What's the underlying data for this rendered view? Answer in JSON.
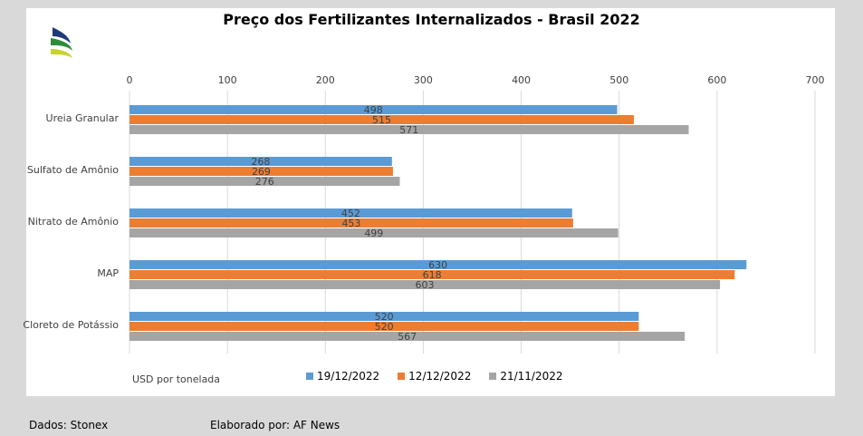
{
  "chart_data": {
    "type": "bar",
    "orientation": "horizontal",
    "title": "Preço dos Fertilizantes Internalizados  - Brasil 2022",
    "xlabel": "USD por tonelada",
    "ylabel": "",
    "xlim": [
      0,
      700
    ],
    "xticks": [
      0,
      100,
      200,
      300,
      400,
      500,
      600,
      700
    ],
    "grid": true,
    "legend_position": "bottom",
    "categories": [
      "Ureia Granular",
      "Sulfato de Amônio",
      "Nitrato de Amônio",
      "MAP",
      "Cloreto de Potássio"
    ],
    "series": [
      {
        "name": "19/12/2022",
        "color": "#5b9bd5",
        "values": [
          498,
          268,
          452,
          630,
          520
        ]
      },
      {
        "name": "12/12/2022",
        "color": "#ed7d31",
        "values": [
          515,
          269,
          453,
          618,
          520
        ]
      },
      {
        "name": "21/11/2022",
        "color": "#a5a5a5",
        "values": [
          571,
          276,
          499,
          603,
          567
        ]
      }
    ]
  },
  "footer": {
    "source": "Dados: Stonex",
    "author": "Elaborado por: AF News"
  },
  "logo": {
    "colors": [
      "#1f3a7a",
      "#2e8b3a",
      "#c8d42e"
    ]
  }
}
